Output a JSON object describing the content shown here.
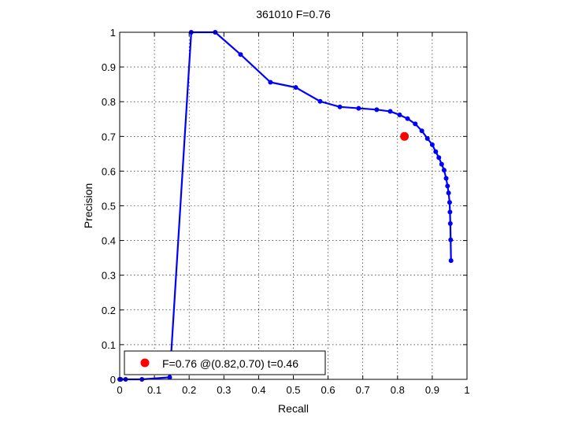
{
  "chart_data": {
    "type": "line",
    "title": "361010 F=0.76",
    "xlabel": "Recall",
    "ylabel": "Precision",
    "xlim": [
      0,
      1
    ],
    "ylim": [
      0,
      1
    ],
    "grid": true,
    "xticks": [
      "0",
      "0.1",
      "0.2",
      "0.3",
      "0.4",
      "0.5",
      "0.6",
      "0.7",
      "0.8",
      "0.9",
      "1"
    ],
    "yticks": [
      "0",
      "0.1",
      "0.2",
      "0.3",
      "0.4",
      "0.5",
      "0.6",
      "0.7",
      "0.8",
      "0.9",
      "1"
    ],
    "series": [
      {
        "color": "#0000ff",
        "x": [
          0.954,
          0.953,
          0.952,
          0.951,
          0.95,
          0.947,
          0.944,
          0.94,
          0.934,
          0.927,
          0.919,
          0.91,
          0.9,
          0.886,
          0.87,
          0.851,
          0.829,
          0.806,
          0.779,
          0.74,
          0.688,
          0.634,
          0.577,
          0.507,
          0.434,
          0.348,
          0.275,
          0.206,
          0.144,
          0.064,
          0.017,
          0.003,
          0.0
        ],
        "y": [
          0.342,
          0.402,
          0.449,
          0.482,
          0.51,
          0.537,
          0.557,
          0.579,
          0.603,
          0.62,
          0.639,
          0.656,
          0.676,
          0.694,
          0.716,
          0.736,
          0.751,
          0.762,
          0.772,
          0.777,
          0.781,
          0.785,
          0.801,
          0.841,
          0.856,
          0.936,
          1.0,
          1.0,
          0.006,
          0.0,
          0.0,
          0.0,
          0.0
        ]
      }
    ],
    "highlight": {
      "x": 0.82,
      "y": 0.7,
      "color": "#ff0000"
    },
    "legend": {
      "position": "bottom-left",
      "label": "F=0.76 @(0.82,0.70) t=0.46"
    }
  }
}
